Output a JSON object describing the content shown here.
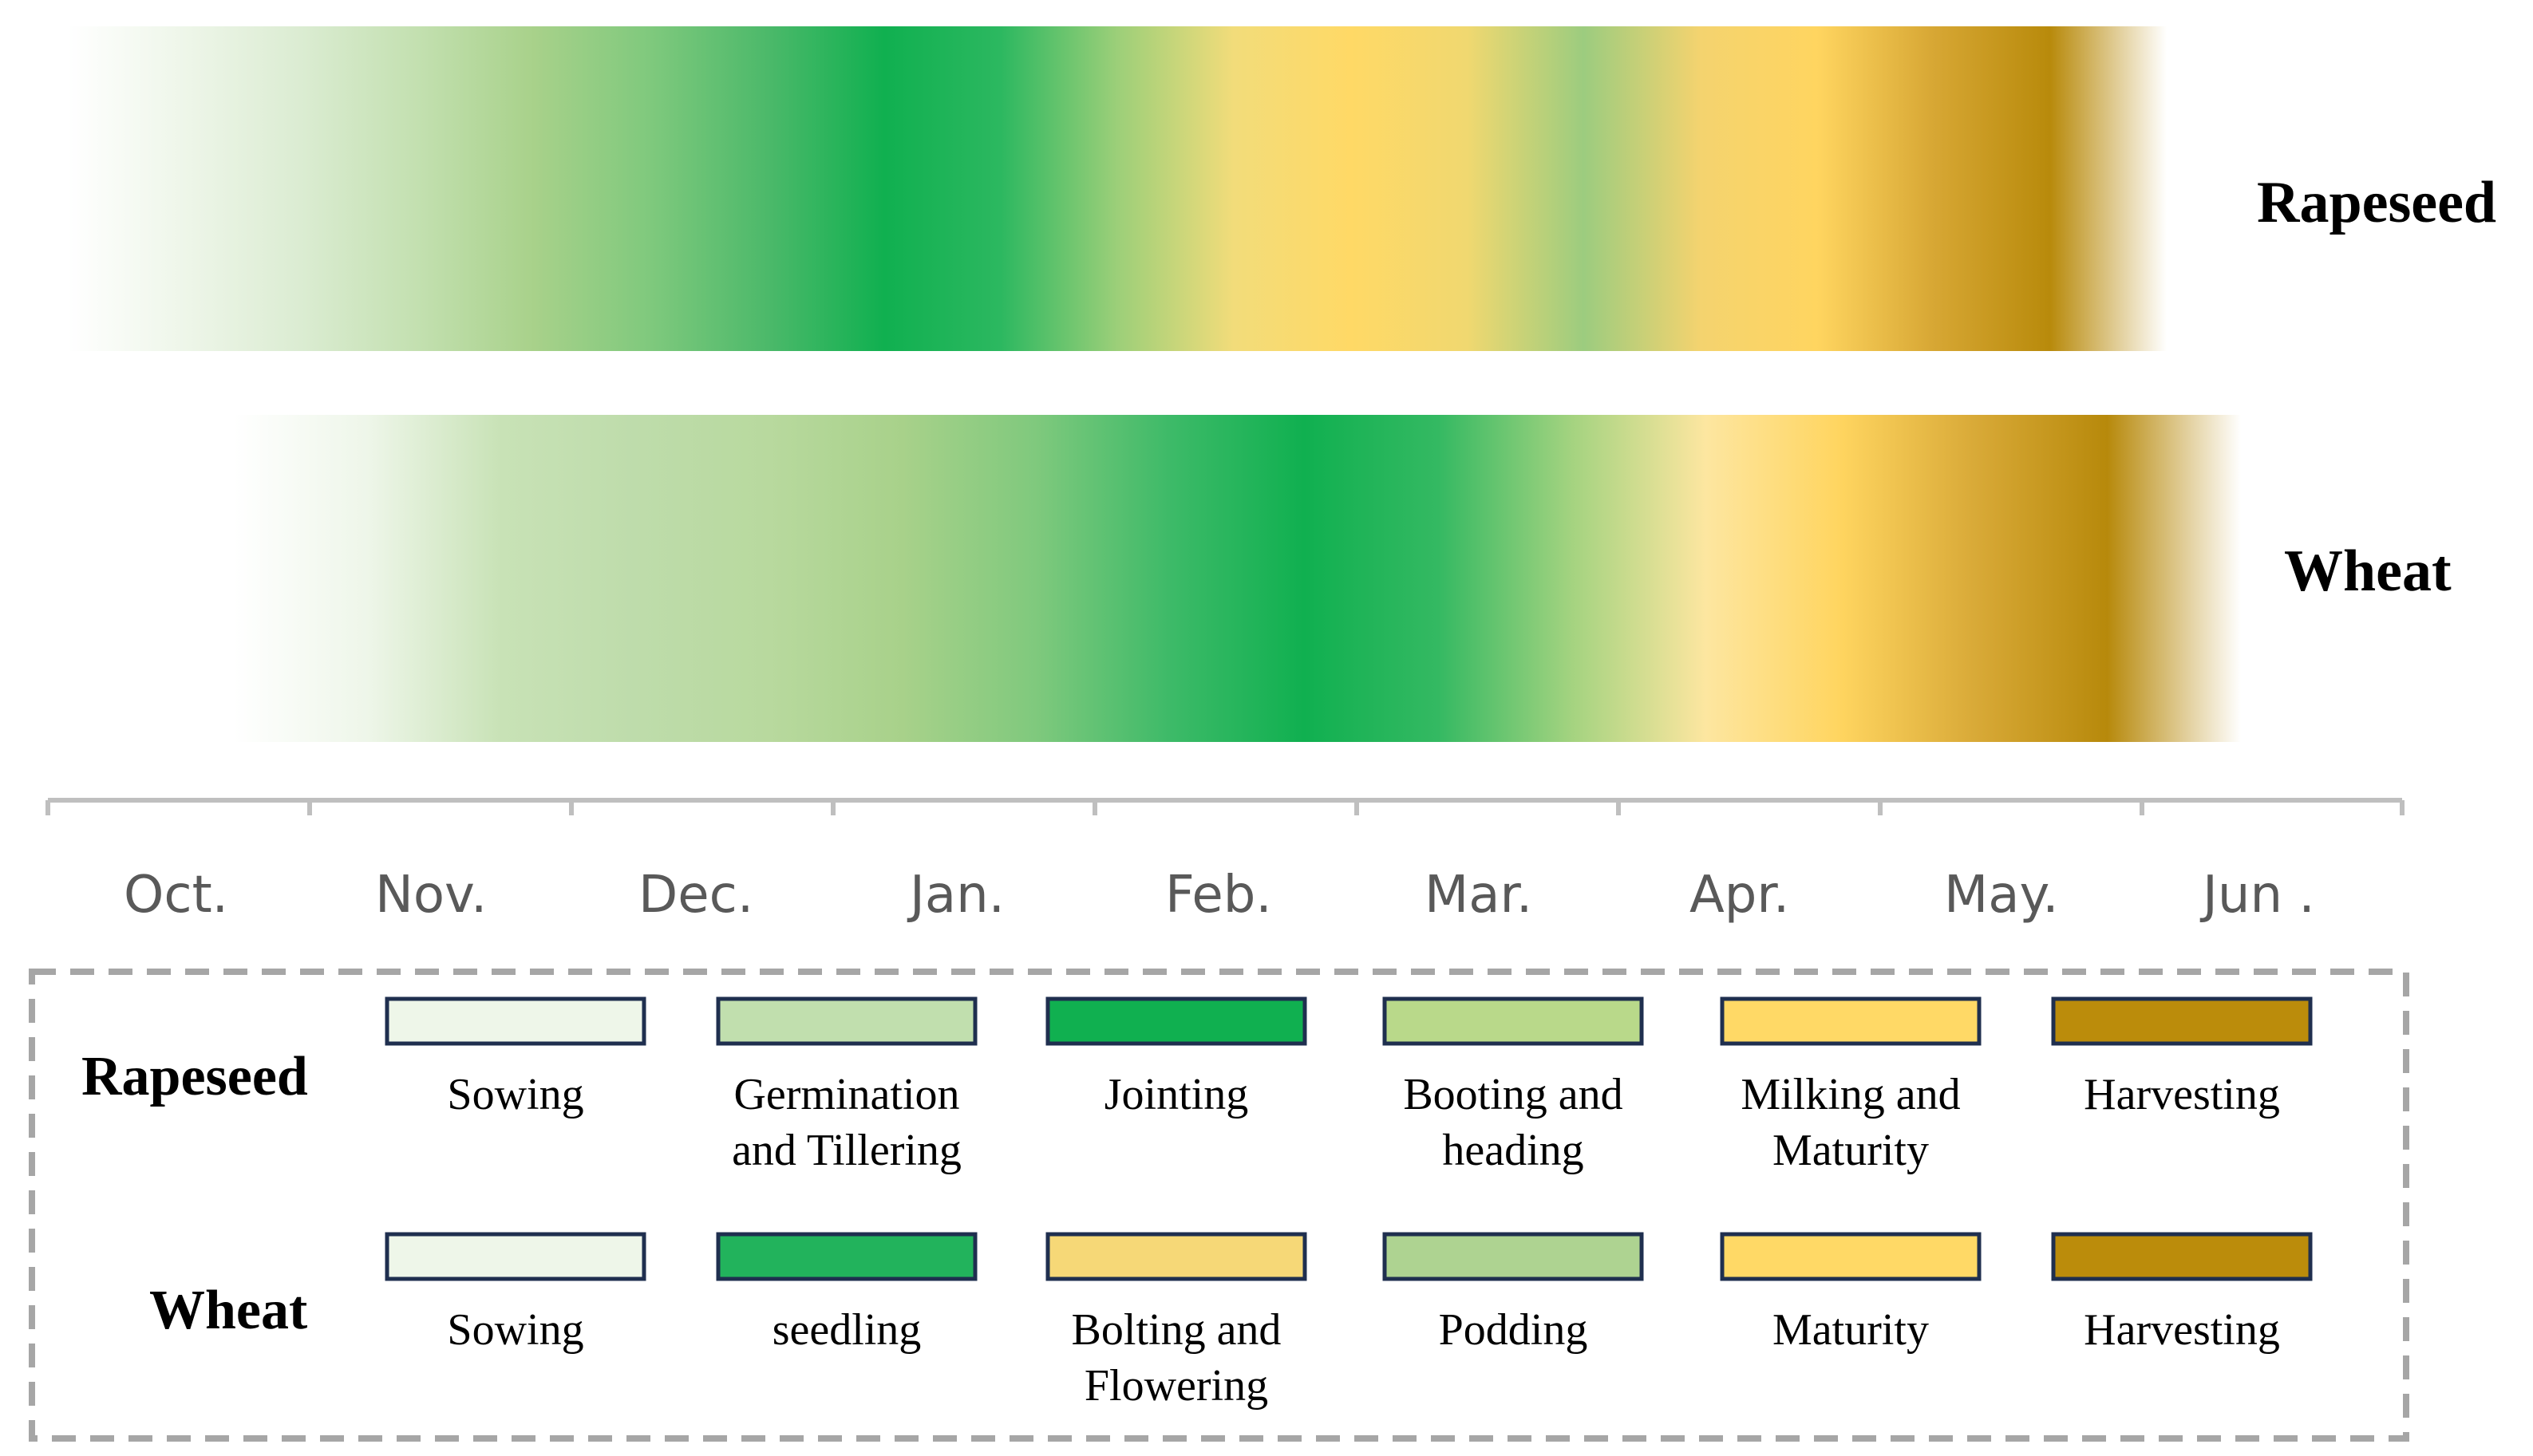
{
  "crops": [
    {
      "name": "Rapeseed",
      "gradient": [
        "#ffffff",
        "#eef6e9",
        "#dbecd2",
        "#c3e0b0",
        "#a8d18a",
        "#7fc97d",
        "#4cb96a",
        "#10b050",
        "#2cb860",
        "#9ccf79",
        "#f2dc7a",
        "#ffd966",
        "#f0d870",
        "#9ccc7f",
        "#f4d36f",
        "#ffd560",
        "#d7a734",
        "#b88a0b",
        "#ffffff"
      ]
    },
    {
      "name": "Wheat",
      "gradient": [
        "#ffffff",
        "#eef6e9",
        "#c8e2b6",
        "#bedcab",
        "#b8d99e",
        "#a8d18a",
        "#7fc97d",
        "#3dba68",
        "#10b050",
        "#34b962",
        "#a4d380",
        "#fde6a0",
        "#ffd560",
        "#d9aa38",
        "#b7890b",
        "#ffffff"
      ]
    }
  ],
  "months": [
    "Oct.",
    "Nov.",
    "Dec.",
    "Jan.",
    "Feb.",
    "Mar.",
    "Apr.",
    "May.",
    "Jun ."
  ],
  "legend": {
    "rows": [
      {
        "name": "Rapeseed",
        "stages": [
          {
            "label": [
              "Sowing"
            ],
            "color": "#eef6e9"
          },
          {
            "label": [
              "Germination",
              "and Tillering"
            ],
            "color": "#c1dfae"
          },
          {
            "label": [
              "Jointing"
            ],
            "color": "#10b050"
          },
          {
            "label": [
              "Booting and",
              "heading"
            ],
            "color": "#b9d98a"
          },
          {
            "label": [
              "Milking and",
              "Maturity"
            ],
            "color": "#ffd966"
          },
          {
            "label": [
              "Harvesting"
            ],
            "color": "#bb8c0b"
          }
        ]
      },
      {
        "name": "Wheat",
        "stages": [
          {
            "label": [
              "Sowing"
            ],
            "color": "#eef6e9"
          },
          {
            "label": [
              "seedling"
            ],
            "color": "#22b35c"
          },
          {
            "label": [
              "Bolting and",
              "Flowering"
            ],
            "color": "#f6d877"
          },
          {
            "label": [
              "Podding"
            ],
            "color": "#aed391"
          },
          {
            "label": [
              "Maturity"
            ],
            "color": "#ffd966"
          },
          {
            "label": [
              "Harvesting"
            ],
            "color": "#bb8c0b"
          }
        ]
      }
    ]
  }
}
